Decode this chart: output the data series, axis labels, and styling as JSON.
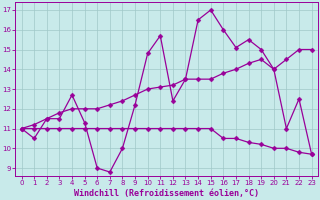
{
  "xlabel": "Windchill (Refroidissement éolien,°C)",
  "background_color": "#c8eaea",
  "grid_color": "#a0c8c8",
  "line_color": "#990099",
  "xlim_min": -0.5,
  "xlim_max": 23.5,
  "ylim_min": 8.6,
  "ylim_max": 17.4,
  "yticks": [
    9,
    10,
    11,
    12,
    13,
    14,
    15,
    16,
    17
  ],
  "xticks": [
    0,
    1,
    2,
    3,
    4,
    5,
    6,
    7,
    8,
    9,
    10,
    11,
    12,
    13,
    14,
    15,
    16,
    17,
    18,
    19,
    20,
    21,
    22,
    23
  ],
  "series1": [
    11.0,
    10.5,
    11.5,
    11.5,
    12.7,
    11.3,
    9.0,
    8.8,
    10.0,
    12.2,
    14.8,
    15.7,
    12.4,
    13.5,
    16.5,
    17.0,
    16.0,
    15.1,
    15.5,
    15.0,
    14.0,
    11.0,
    12.5,
    9.7
  ],
  "series2": [
    11.0,
    11.2,
    11.5,
    11.8,
    12.0,
    12.0,
    12.0,
    12.2,
    12.4,
    12.7,
    13.0,
    13.1,
    13.2,
    13.5,
    13.5,
    13.5,
    13.8,
    14.0,
    14.3,
    14.5,
    14.0,
    14.5,
    15.0,
    15.0
  ],
  "series3": [
    11.0,
    11.0,
    11.0,
    11.0,
    11.0,
    11.0,
    11.0,
    11.0,
    11.0,
    11.0,
    11.0,
    11.0,
    11.0,
    11.0,
    11.0,
    11.0,
    10.5,
    10.5,
    10.3,
    10.2,
    10.0,
    10.0,
    9.8,
    9.7
  ],
  "markersize": 2.5,
  "linewidth": 0.9,
  "tick_fontsize": 5.0,
  "xlabel_fontsize": 6.0
}
